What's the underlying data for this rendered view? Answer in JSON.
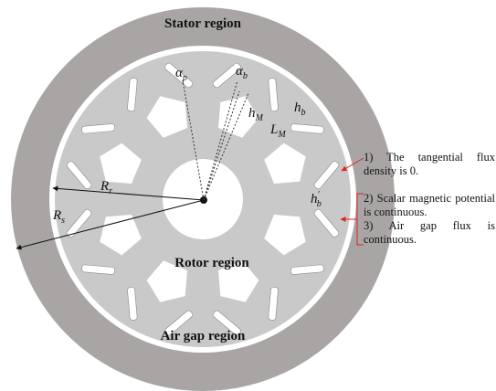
{
  "regions": {
    "stator": "Stator region",
    "rotor": "Rotor region",
    "air_gap": "Air gap region"
  },
  "symbols": {
    "alpha_p": {
      "main": "α",
      "sub": "p"
    },
    "alpha_b": {
      "main": "α",
      "sub": "b"
    },
    "h_M": {
      "main": "h",
      "sub": "M"
    },
    "h_b": {
      "main": "h",
      "sub": "b"
    },
    "L_M": {
      "main": "L",
      "sub": "M"
    },
    "h_b_prime": {
      "main": "h",
      "sup": "′",
      "sub": "b"
    },
    "R_r": {
      "main": "R",
      "sub": "r"
    },
    "R_s": {
      "main": "R",
      "sub": "s"
    }
  },
  "conditions": [
    "1) The tangential flux density is 0.",
    "2) Scalar magnetic potential is continuous.",
    "3) Air gap flux is continuous."
  ]
}
